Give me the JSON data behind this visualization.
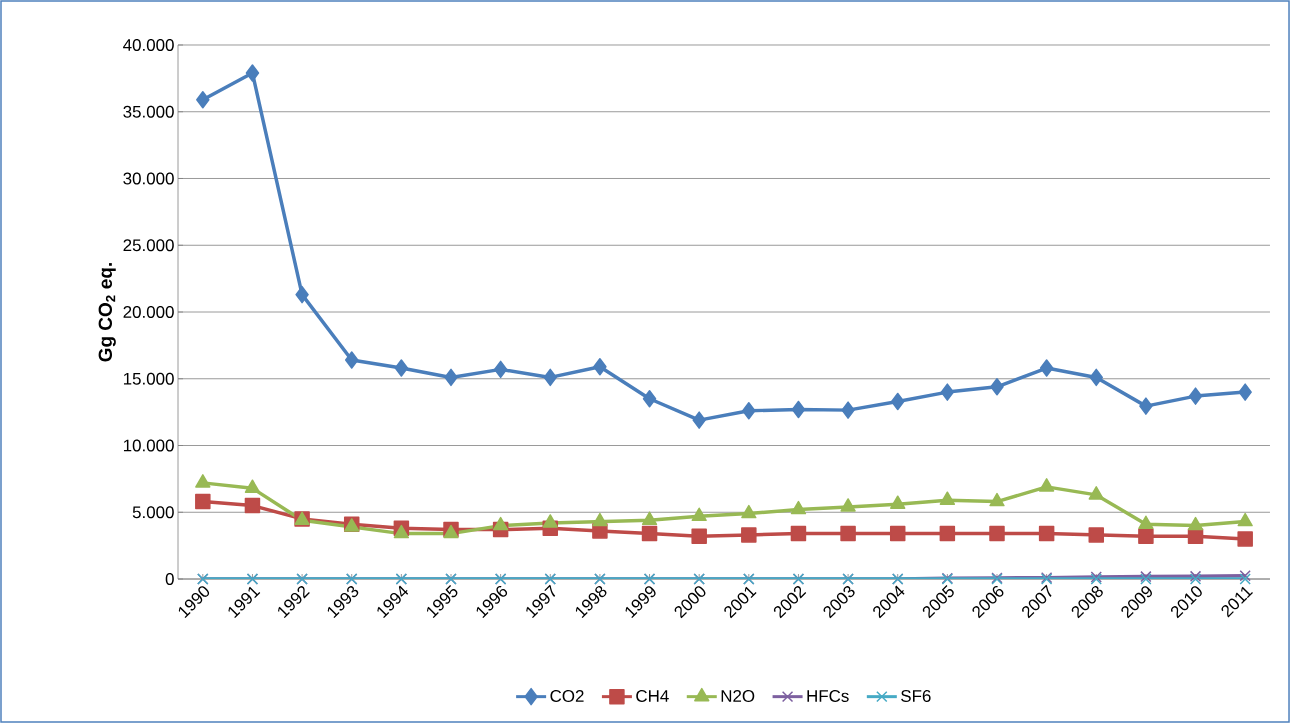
{
  "chart_data": {
    "type": "line",
    "ylabel": "Gg CO$_{2}$ eq.",
    "categories": [
      "1990",
      "1991",
      "1992",
      "1993",
      "1994",
      "1995",
      "1996",
      "1997",
      "1998",
      "1999",
      "2000",
      "2001",
      "2002",
      "2003",
      "2004",
      "2005",
      "2006",
      "2007",
      "2008",
      "2009",
      "2010",
      "2011"
    ],
    "ylim": [
      0,
      40000
    ],
    "yticks": [
      {
        "value": 0,
        "label": "0"
      },
      {
        "value": 5000,
        "label": "5.000"
      },
      {
        "value": 10000,
        "label": "10.000"
      },
      {
        "value": 15000,
        "label": "15.000"
      },
      {
        "value": 20000,
        "label": "20.000"
      },
      {
        "value": 25000,
        "label": "25.000"
      },
      {
        "value": 30000,
        "label": "30.000"
      },
      {
        "value": 35000,
        "label": "35.000"
      },
      {
        "value": 40000,
        "label": "40.000"
      }
    ],
    "grid": "y",
    "legend": "bottom",
    "line_style": "solid",
    "series": [
      {
        "name": "CO2",
        "color": "#4a7ebb",
        "marker": "diamond",
        "values": [
          35900,
          37900,
          21300,
          16400,
          15800,
          15100,
          15700,
          15100,
          15900,
          13500,
          11900,
          12600,
          12700,
          12650,
          13300,
          14000,
          14400,
          15800,
          15100,
          12950,
          13700,
          14000
        ]
      },
      {
        "name": "CH4",
        "color": "#be4b48",
        "marker": "square",
        "values": [
          5800,
          5500,
          4500,
          4100,
          3800,
          3700,
          3700,
          3800,
          3600,
          3400,
          3200,
          3300,
          3400,
          3400,
          3400,
          3400,
          3400,
          3400,
          3300,
          3200,
          3200,
          3000
        ]
      },
      {
        "name": "N2O",
        "color": "#98b954",
        "marker": "triangle",
        "values": [
          7200,
          6800,
          4400,
          3900,
          3400,
          3400,
          4000,
          4200,
          4300,
          4400,
          4700,
          4900,
          5200,
          5400,
          5600,
          5900,
          5800,
          6900,
          6300,
          4100,
          4000,
          4300
        ]
      },
      {
        "name": "HFCs",
        "color": "#7d60a0",
        "marker": "cross",
        "values": [
          0,
          0,
          0,
          0,
          0,
          0,
          0,
          0,
          0,
          0,
          0,
          0,
          0,
          0,
          0,
          50,
          80,
          100,
          150,
          180,
          200,
          250
        ]
      },
      {
        "name": "SF6",
        "color": "#46aac5",
        "marker": "cross",
        "values": [
          0,
          0,
          0,
          0,
          0,
          0,
          0,
          0,
          0,
          0,
          0,
          0,
          0,
          0,
          0,
          0,
          0,
          0,
          0,
          0,
          0,
          0
        ]
      }
    ]
  }
}
